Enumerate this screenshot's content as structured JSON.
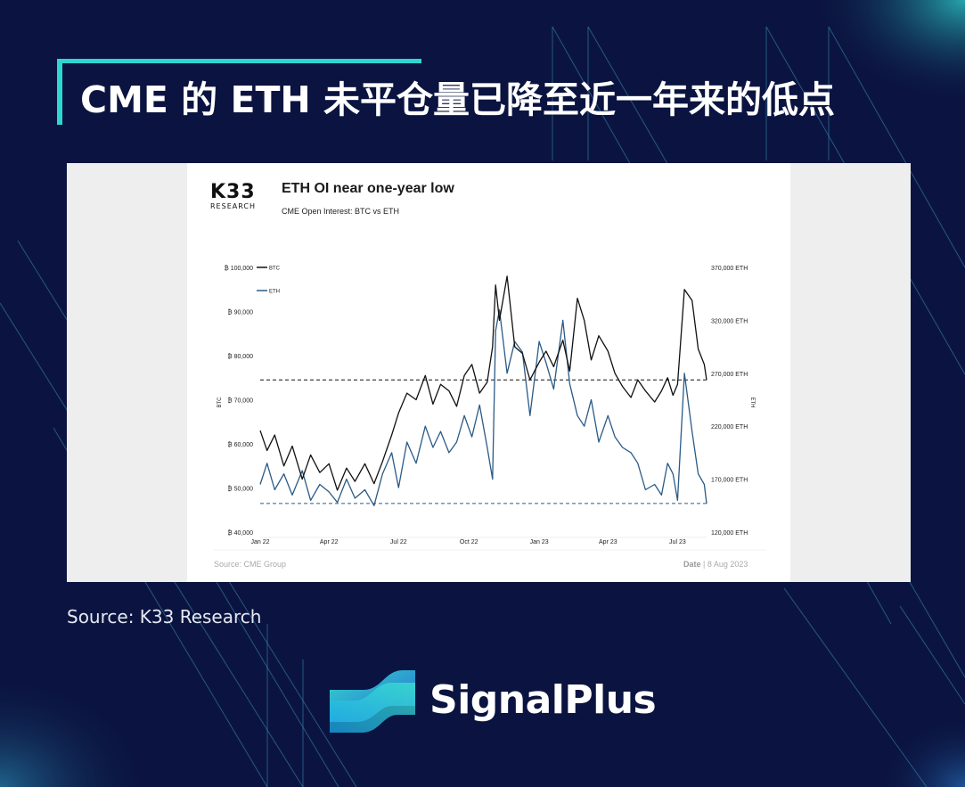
{
  "headline": "CME 的 ETH 未平仓量已降至近一年来的低点",
  "card": {
    "logo_top": "K33",
    "logo_bottom": "RESEARCH",
    "footer_source": "Source: CME Group",
    "footer_date_label": "Date",
    "footer_date_value": "| 8 Aug 2023"
  },
  "source_caption": "Source: K33 Research",
  "brand": {
    "name": "SignalPlus",
    "logo_icon": "signalplus-wave-icon"
  },
  "colors": {
    "background": "#0b1440",
    "accent": "#2fd6d0",
    "btc_line": "#111111",
    "eth_line": "#2b5a86"
  },
  "chart_data": {
    "type": "line",
    "title": "ETH OI near one-year low",
    "subtitle": "CME Open Interest: BTC vs ETH",
    "x_ticks": [
      "Jan 22",
      "Apr 22",
      "Jul 22",
      "Oct 22",
      "Jan 23",
      "Apr 23",
      "Jul 23"
    ],
    "x_tick_dates": [
      "2022-01-01",
      "2022-04-01",
      "2022-07-01",
      "2022-10-01",
      "2023-01-01",
      "2023-04-01",
      "2023-07-01"
    ],
    "x_range": [
      "2022-01-01",
      "2023-08-08"
    ],
    "left_axis": {
      "label": "BTC",
      "range": [
        40000,
        100000
      ],
      "ticks": [
        40000,
        50000,
        60000,
        70000,
        80000,
        90000,
        100000
      ],
      "tick_labels": [
        "₿ 40,000",
        "₿ 50,000",
        "₿ 60,000",
        "₿ 70,000",
        "₿ 80,000",
        "₿ 90,000",
        "₿ 100,000"
      ]
    },
    "right_axis": {
      "label": "ETH",
      "range": [
        120000,
        370000
      ],
      "ticks": [
        120000,
        170000,
        220000,
        270000,
        320000,
        370000
      ],
      "tick_labels": [
        "120,000 ETH",
        "170,000 ETH",
        "220,000 ETH",
        "270,000 ETH",
        "320,000 ETH",
        "370,000 ETH"
      ]
    },
    "legend": {
      "placement": "top-left"
    },
    "grid": false,
    "reference_lines": [
      {
        "axis": "left",
        "value": 74500,
        "style": "dashed",
        "color": "#111111"
      },
      {
        "axis": "right",
        "value": 147000,
        "style": "dashed",
        "color": "#2b5a86"
      }
    ],
    "series": [
      {
        "name": "BTC",
        "axis": "left",
        "dates": [
          "2022-01-01",
          "2022-01-10",
          "2022-01-20",
          "2022-02-01",
          "2022-02-12",
          "2022-02-25",
          "2022-03-08",
          "2022-03-20",
          "2022-04-01",
          "2022-04-12",
          "2022-04-24",
          "2022-05-05",
          "2022-05-18",
          "2022-05-30",
          "2022-06-10",
          "2022-06-22",
          "2022-07-01",
          "2022-07-12",
          "2022-07-24",
          "2022-08-05",
          "2022-08-15",
          "2022-08-25",
          "2022-09-05",
          "2022-09-15",
          "2022-09-25",
          "2022-10-05",
          "2022-10-15",
          "2022-10-25",
          "2022-11-01",
          "2022-11-05",
          "2022-11-10",
          "2022-11-20",
          "2022-11-30",
          "2022-12-10",
          "2022-12-20",
          "2023-01-01",
          "2023-01-10",
          "2023-01-20",
          "2023-02-01",
          "2023-02-10",
          "2023-02-20",
          "2023-03-01",
          "2023-03-10",
          "2023-03-20",
          "2023-04-01",
          "2023-04-10",
          "2023-04-20",
          "2023-05-01",
          "2023-05-10",
          "2023-05-20",
          "2023-06-01",
          "2023-06-10",
          "2023-06-18",
          "2023-06-25",
          "2023-07-01",
          "2023-07-10",
          "2023-07-20",
          "2023-07-28",
          "2023-08-05",
          "2023-08-08"
        ],
        "values": [
          63000,
          58500,
          62000,
          55000,
          59500,
          52000,
          57500,
          53500,
          55500,
          49500,
          54500,
          51500,
          55500,
          51000,
          56000,
          62000,
          67000,
          71500,
          70000,
          75500,
          69000,
          73500,
          72000,
          68500,
          75500,
          78000,
          71500,
          74000,
          82000,
          96000,
          88000,
          98000,
          82000,
          80500,
          74500,
          78500,
          81000,
          77500,
          83500,
          76500,
          93000,
          88000,
          79000,
          84500,
          81000,
          76000,
          73000,
          70500,
          74500,
          72000,
          69500,
          72000,
          75000,
          71000,
          73500,
          95000,
          92500,
          81500,
          78000,
          74500
        ]
      },
      {
        "name": "ETH",
        "axis": "right",
        "dates": [
          "2022-01-01",
          "2022-01-10",
          "2022-01-20",
          "2022-02-01",
          "2022-02-12",
          "2022-02-25",
          "2022-03-08",
          "2022-03-20",
          "2022-04-01",
          "2022-04-12",
          "2022-04-24",
          "2022-05-05",
          "2022-05-18",
          "2022-05-30",
          "2022-06-10",
          "2022-06-22",
          "2022-07-01",
          "2022-07-12",
          "2022-07-24",
          "2022-08-05",
          "2022-08-15",
          "2022-08-25",
          "2022-09-05",
          "2022-09-15",
          "2022-09-25",
          "2022-10-05",
          "2022-10-15",
          "2022-10-25",
          "2022-11-01",
          "2022-11-05",
          "2022-11-10",
          "2022-11-20",
          "2022-11-30",
          "2022-12-10",
          "2022-12-20",
          "2023-01-01",
          "2023-01-10",
          "2023-01-20",
          "2023-02-01",
          "2023-02-10",
          "2023-02-20",
          "2023-03-01",
          "2023-03-10",
          "2023-03-20",
          "2023-04-01",
          "2023-04-10",
          "2023-04-20",
          "2023-05-01",
          "2023-05-10",
          "2023-05-20",
          "2023-06-01",
          "2023-06-10",
          "2023-06-18",
          "2023-06-25",
          "2023-07-01",
          "2023-07-10",
          "2023-07-20",
          "2023-07-28",
          "2023-08-05",
          "2023-08-08"
        ],
        "values": [
          165000,
          185000,
          160000,
          175000,
          155000,
          178000,
          150000,
          165000,
          158000,
          148000,
          170000,
          152000,
          160000,
          145000,
          175000,
          195000,
          162000,
          205000,
          185000,
          220000,
          200000,
          215000,
          195000,
          205000,
          230000,
          210000,
          240000,
          200000,
          170000,
          310000,
          330000,
          270000,
          300000,
          290000,
          230000,
          300000,
          280000,
          255000,
          320000,
          260000,
          230000,
          220000,
          245000,
          205000,
          230000,
          210000,
          200000,
          195000,
          185000,
          160000,
          165000,
          155000,
          185000,
          175000,
          150000,
          270000,
          215000,
          175000,
          165000,
          147000
        ]
      }
    ]
  }
}
